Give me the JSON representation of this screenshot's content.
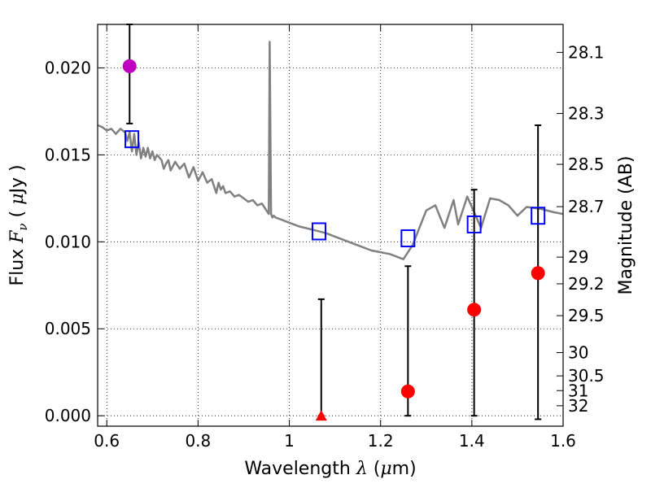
{
  "chart_data": {
    "type": "scatter",
    "xlabel": {
      "prefix": "Wavelength",
      "symbol": "λ",
      "unit_open": " (",
      "unit_mu": "μ",
      "unit_rest": "m)"
    },
    "ylabel": {
      "prefix": "Flux",
      "symbol": "F",
      "sub": "ν",
      "unit_open": "( ",
      "unit_mu": "μ",
      "unit_rest": "Jy )"
    },
    "ylabel_right": "Magnitude (AB)",
    "xlim": [
      0.58,
      1.6
    ],
    "ylim": [
      -0.0006,
      0.0225
    ],
    "grid": true,
    "x_ticks": [
      {
        "value": 0.6,
        "label": "0.6"
      },
      {
        "value": 0.8,
        "label": "0.8"
      },
      {
        "value": 1.0,
        "label": "1"
      },
      {
        "value": 1.2,
        "label": "1.2"
      },
      {
        "value": 1.4,
        "label": "1.4"
      },
      {
        "value": 1.6,
        "label": "1.6"
      }
    ],
    "y_ticks": [
      {
        "value": 0.0,
        "label": "0.000"
      },
      {
        "value": 0.005,
        "label": "0.005"
      },
      {
        "value": 0.01,
        "label": "0.010"
      },
      {
        "value": 0.015,
        "label": "0.015"
      },
      {
        "value": 0.02,
        "label": "0.020"
      }
    ],
    "mag_ticks": [
      {
        "mag": 28.1,
        "label": "28.1"
      },
      {
        "mag": 28.3,
        "label": "28.3"
      },
      {
        "mag": 28.5,
        "label": "28.5"
      },
      {
        "mag": 28.7,
        "label": "28.7"
      },
      {
        "mag": 29.0,
        "label": "29"
      },
      {
        "mag": 29.2,
        "label": "29.2"
      },
      {
        "mag": 29.5,
        "label": "29.5"
      },
      {
        "mag": 30.0,
        "label": "30"
      },
      {
        "mag": 30.5,
        "label": "30.5"
      },
      {
        "mag": 31.0,
        "label": "31"
      },
      {
        "mag": 32.0,
        "label": "32"
      }
    ],
    "model_spectrum": {
      "name": "model template",
      "color": "#808080",
      "x": [
        0.58,
        0.59,
        0.6,
        0.61,
        0.62,
        0.63,
        0.64,
        0.645,
        0.65,
        0.655,
        0.66,
        0.665,
        0.67,
        0.675,
        0.68,
        0.685,
        0.69,
        0.695,
        0.7,
        0.705,
        0.71,
        0.72,
        0.725,
        0.73,
        0.735,
        0.74,
        0.75,
        0.76,
        0.77,
        0.78,
        0.79,
        0.8,
        0.81,
        0.82,
        0.83,
        0.84,
        0.845,
        0.85,
        0.855,
        0.86,
        0.87,
        0.88,
        0.89,
        0.9,
        0.91,
        0.92,
        0.93,
        0.94,
        0.95,
        0.955,
        0.957,
        0.96,
        0.963,
        0.966,
        0.97,
        0.98,
        1.0,
        1.02,
        1.05,
        1.08,
        1.1,
        1.12,
        1.15,
        1.18,
        1.2,
        1.22,
        1.25,
        1.27,
        1.3,
        1.32,
        1.34,
        1.36,
        1.37,
        1.39,
        1.42,
        1.44,
        1.46,
        1.48,
        1.5,
        1.52,
        1.55,
        1.58,
        1.6
      ],
      "y": [
        0.0167,
        0.0166,
        0.0164,
        0.0165,
        0.0162,
        0.0165,
        0.0163,
        0.0158,
        0.0163,
        0.0152,
        0.0162,
        0.015,
        0.0157,
        0.0148,
        0.0154,
        0.0149,
        0.0154,
        0.0148,
        0.0152,
        0.0147,
        0.015,
        0.0147,
        0.0142,
        0.0145,
        0.0147,
        0.0141,
        0.0146,
        0.0142,
        0.0145,
        0.0137,
        0.0143,
        0.0135,
        0.014,
        0.0134,
        0.0136,
        0.0128,
        0.0134,
        0.013,
        0.0132,
        0.0128,
        0.0129,
        0.0126,
        0.0127,
        0.0125,
        0.0123,
        0.0124,
        0.0121,
        0.0122,
        0.0118,
        0.0116,
        0.0215,
        0.0116,
        0.0114,
        0.0115,
        0.0114,
        0.0113,
        0.0111,
        0.0109,
        0.0107,
        0.0105,
        0.0103,
        0.0101,
        0.0098,
        0.0095,
        0.0094,
        0.0093,
        0.009,
        0.0098,
        0.0118,
        0.0121,
        0.0108,
        0.0124,
        0.011,
        0.0126,
        0.0108,
        0.0125,
        0.0124,
        0.0121,
        0.0115,
        0.012,
        0.0119,
        0.0117,
        0.0116
      ]
    },
    "photometry_squares": {
      "name": "model photometry",
      "color": "#0000ff",
      "x": [
        0.655,
        1.065,
        1.26,
        1.405,
        1.545
      ],
      "y": [
        0.0159,
        0.0106,
        0.0102,
        0.011,
        0.0115
      ]
    },
    "detection_magenta": {
      "name": "detection",
      "color": "#bf00bf",
      "x": [
        0.65
      ],
      "y": [
        0.0201
      ],
      "yerr_low": [
        0.0168
      ],
      "yerr_high": [
        0.0225
      ]
    },
    "observations_red": {
      "name": "observed flux",
      "color": "#ff0000",
      "x": [
        1.26,
        1.405,
        1.545
      ],
      "y": [
        0.0014,
        0.0061,
        0.0082
      ],
      "yerr_low": [
        0.0,
        0.0,
        -0.0002
      ],
      "yerr_high": [
        0.0086,
        0.013,
        0.0167
      ]
    },
    "upper_limit_triangle": {
      "name": "non-detection",
      "color": "#ff0000",
      "x": [
        1.07
      ],
      "y": [
        0.0
      ],
      "yerr_high": [
        0.0067
      ]
    }
  }
}
